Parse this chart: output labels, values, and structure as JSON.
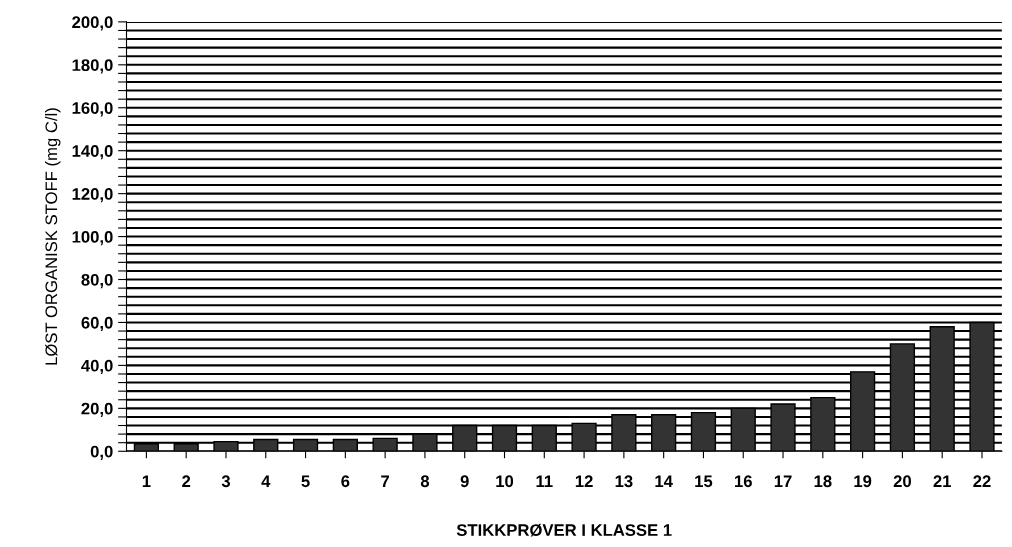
{
  "chart_data": {
    "type": "bar",
    "xlabel": "STIKKPRØVER I KLASSE 1",
    "ylabel": "LØST ORGANISK STOFF (mg C/l)",
    "categories": [
      "1",
      "2",
      "3",
      "4",
      "5",
      "6",
      "7",
      "8",
      "9",
      "10",
      "11",
      "12",
      "13",
      "14",
      "15",
      "16",
      "17",
      "18",
      "19",
      "20",
      "21",
      "22"
    ],
    "values": [
      3.5,
      3.5,
      4.5,
      5.5,
      5.5,
      5.5,
      6,
      8,
      12,
      12,
      12,
      13,
      17,
      17,
      18,
      20,
      22,
      25,
      37,
      50,
      58,
      60
    ],
    "color": "#333333",
    "ylim": [
      0,
      200
    ],
    "yticks": [
      {
        "value": 0,
        "label": "0,0"
      },
      {
        "value": 4,
        "label": null
      },
      {
        "value": 8,
        "label": null
      },
      {
        "value": 12,
        "label": null
      },
      {
        "value": 16,
        "label": null
      },
      {
        "value": 20,
        "label": "20,0"
      },
      {
        "value": 24,
        "label": null
      },
      {
        "value": 28,
        "label": null
      },
      {
        "value": 32,
        "label": null
      },
      {
        "value": 36,
        "label": null
      },
      {
        "value": 40,
        "label": "40,0"
      },
      {
        "value": 44,
        "label": null
      },
      {
        "value": 48,
        "label": null
      },
      {
        "value": 52,
        "label": null
      },
      {
        "value": 56,
        "label": null
      },
      {
        "value": 60,
        "label": "60,0"
      },
      {
        "value": 64,
        "label": null
      },
      {
        "value": 68,
        "label": null
      },
      {
        "value": 72,
        "label": null
      },
      {
        "value": 76,
        "label": null
      },
      {
        "value": 80,
        "label": "80,0"
      },
      {
        "value": 84,
        "label": null
      },
      {
        "value": 88,
        "label": null
      },
      {
        "value": 92,
        "label": null
      },
      {
        "value": 96,
        "label": null
      },
      {
        "value": 100,
        "label": "100,0"
      },
      {
        "value": 104,
        "label": null
      },
      {
        "value": 108,
        "label": null
      },
      {
        "value": 112,
        "label": null
      },
      {
        "value": 116,
        "label": null
      },
      {
        "value": 120,
        "label": "120,0"
      },
      {
        "value": 124,
        "label": null
      },
      {
        "value": 128,
        "label": null
      },
      {
        "value": 132,
        "label": null
      },
      {
        "value": 136,
        "label": null
      },
      {
        "value": 140,
        "label": "140,0"
      },
      {
        "value": 144,
        "label": null
      },
      {
        "value": 148,
        "label": null
      },
      {
        "value": 152,
        "label": null
      },
      {
        "value": 156,
        "label": null
      },
      {
        "value": 160,
        "label": "160,0"
      },
      {
        "value": 164,
        "label": null
      },
      {
        "value": 168,
        "label": null
      },
      {
        "value": 172,
        "label": null
      },
      {
        "value": 176,
        "label": null
      },
      {
        "value": 180,
        "label": "180,0"
      },
      {
        "value": 184,
        "label": null
      },
      {
        "value": 188,
        "label": null
      },
      {
        "value": 192,
        "label": null
      },
      {
        "value": 196,
        "label": null
      },
      {
        "value": 200,
        "label": "200,0"
      }
    ],
    "grid": "y"
  }
}
